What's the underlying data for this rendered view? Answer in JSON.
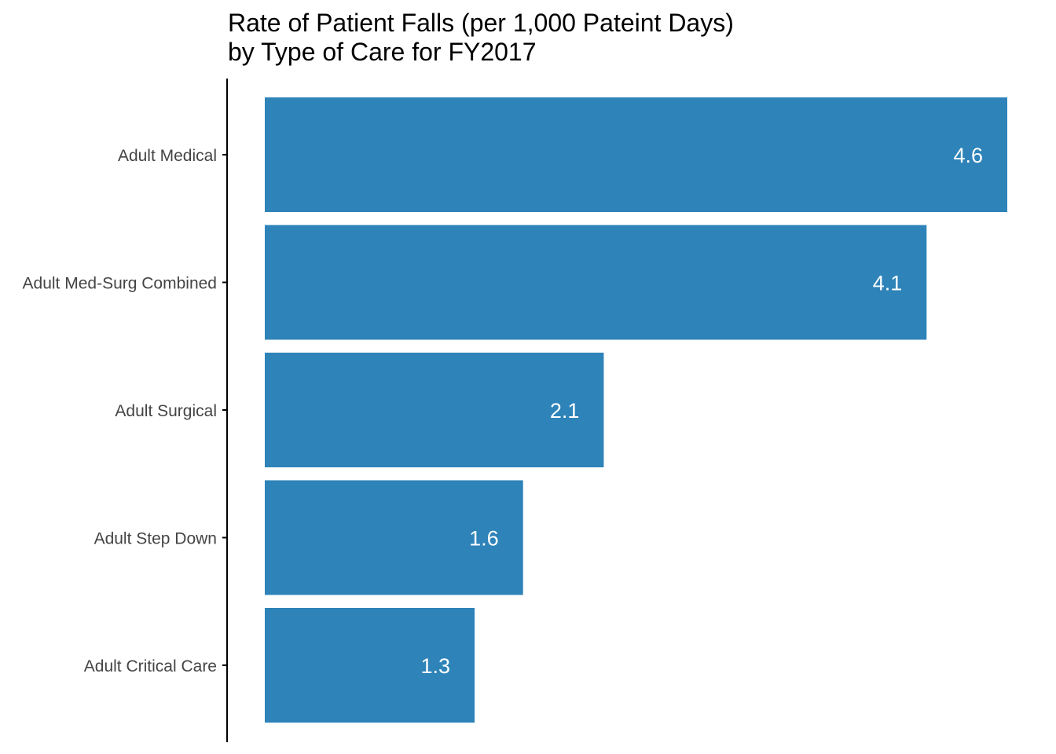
{
  "chart_data": {
    "type": "bar",
    "orientation": "horizontal",
    "title": [
      "Rate of Patient Falls (per 1,000 Pateint Days)",
      "by Type of Care for FY2017"
    ],
    "xlabel": "",
    "ylabel": "",
    "categories": [
      "Adult Medical",
      "Adult Med-Surg Combined",
      "Adult Surgical",
      "Adult Step Down",
      "Adult Critical Care"
    ],
    "values": [
      4.6,
      4.1,
      2.1,
      1.6,
      1.3
    ],
    "data_labels": [
      "4.6",
      "4.1",
      "2.1",
      "1.6",
      "1.3"
    ],
    "xlim": [
      0,
      4.6
    ],
    "grid": false,
    "legend": "none",
    "colors": {
      "bar": "#2e83b9",
      "data_label": "#ffffff",
      "tick_label": "#444444",
      "axis_line": "#000000"
    }
  }
}
